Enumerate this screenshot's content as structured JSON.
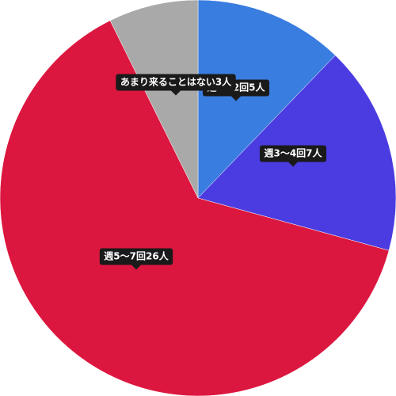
{
  "chart_data": {
    "type": "pie",
    "series": [
      {
        "label": "週1〜2回",
        "value": 5,
        "unit": "人",
        "color": "#3a7de0"
      },
      {
        "label": "週3〜4回",
        "value": 7,
        "unit": "人",
        "color": "#4a3ce0"
      },
      {
        "label": "週5〜7回",
        "value": 26,
        "unit": "人",
        "color": "#dc173f"
      },
      {
        "label": "あまり来ることはない",
        "value": 3,
        "unit": "人",
        "color": "#a9a9a9"
      }
    ],
    "data_labels": [
      "週1〜2回5人",
      "週3〜4回7人",
      "週5〜7回26人",
      "あまり来ることはない3人"
    ]
  }
}
